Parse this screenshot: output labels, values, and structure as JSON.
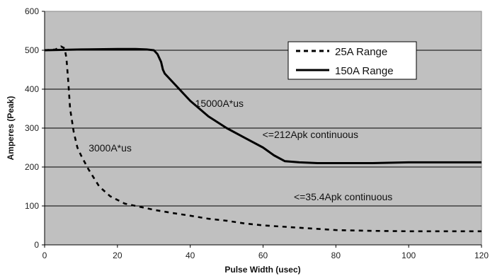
{
  "chart_data": {
    "type": "line",
    "title": "",
    "xlabel": "Pulse Width (usec)",
    "ylabel": "Amperes (Peak)",
    "xlim": [
      0,
      120
    ],
    "ylim": [
      0,
      600
    ],
    "xticks": [
      "0",
      "20",
      "40",
      "60",
      "80",
      "100",
      "120"
    ],
    "yticks": [
      "0",
      "100",
      "200",
      "300",
      "400",
      "500",
      "600"
    ],
    "grid": "horizontal",
    "legend_position": "top-right",
    "background": "#c0c0c0",
    "series": [
      {
        "name": "25A Range",
        "style": "dashed",
        "color": "#000000",
        "x": [
          0,
          3,
          4.5,
          5.5,
          6,
          6.5,
          7,
          8,
          9,
          10,
          12,
          15,
          18,
          22,
          26,
          30,
          35,
          40,
          45,
          50,
          55,
          60,
          70,
          80,
          90,
          100,
          110,
          120
        ],
        "y": [
          500,
          502,
          510,
          505,
          480,
          420,
          350,
          290,
          250,
          230,
          195,
          150,
          125,
          106,
          98,
          90,
          82,
          75,
          67,
          62,
          55,
          50,
          44,
          38,
          36,
          35,
          35,
          35
        ]
      },
      {
        "name": "150A Range",
        "style": "solid",
        "color": "#000000",
        "x": [
          0,
          10,
          20,
          25,
          28,
          30,
          31,
          32,
          32.5,
          33,
          35,
          38,
          40,
          45,
          50,
          55,
          60,
          63,
          66,
          70,
          75,
          80,
          90,
          100,
          110,
          120
        ],
        "y": [
          500,
          502,
          503,
          503,
          502,
          500,
          490,
          470,
          450,
          440,
          420,
          390,
          370,
          330,
          300,
          275,
          250,
          230,
          215,
          212,
          210,
          210,
          210,
          212,
          212,
          212
        ]
      }
    ],
    "annotations": [
      {
        "text": "15000A*us",
        "x": 48,
        "y": 355
      },
      {
        "text": "3000A*us",
        "x": 18,
        "y": 240
      },
      {
        "text": "<=212Apk continuous",
        "x": 73,
        "y": 275
      },
      {
        "text": "<=35.4Apk continuous",
        "x": 82,
        "y": 115
      }
    ]
  }
}
